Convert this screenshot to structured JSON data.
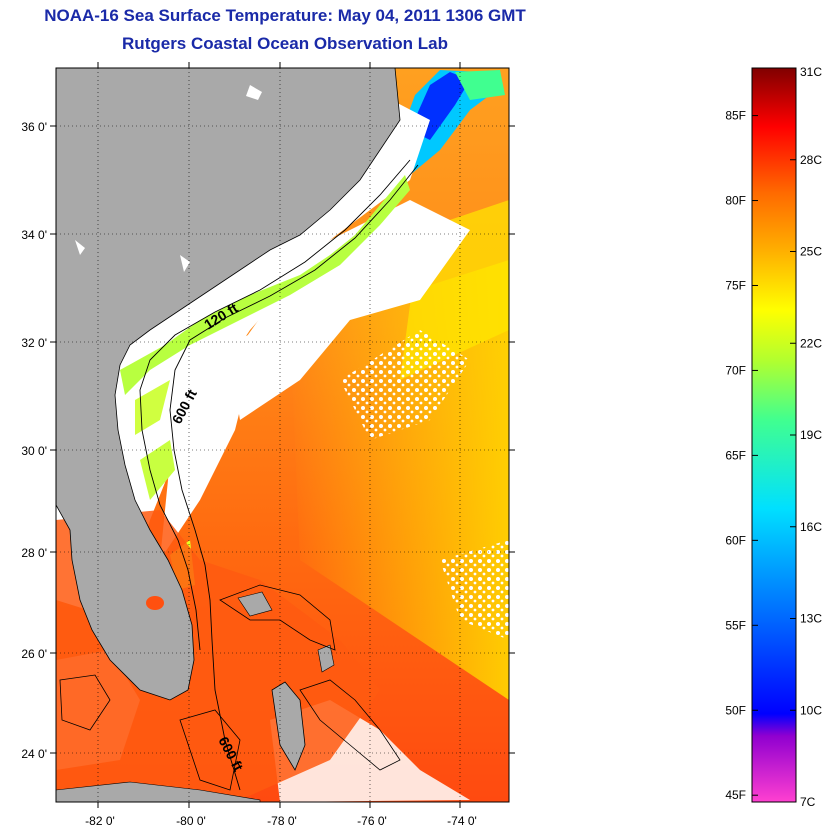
{
  "header": {
    "title": "NOAA-16 Sea Surface Temperature:  May 04, 2011 1306 GMT",
    "subtitle": "Rutgers Coastal Ocean Observation Lab"
  },
  "map": {
    "lat_labels": [
      "36 0'",
      "34 0'",
      "32 0'",
      "30 0'",
      "28 0'",
      "26 0'",
      "24 0'"
    ],
    "lon_labels": [
      "-82 0'",
      "-80 0'",
      "-78 0'",
      "-76 0'",
      "-74 0'"
    ],
    "contour_labels": [
      "120 ft",
      "600 ft",
      "600 ft"
    ],
    "land_color": "#a9a9a9",
    "no_data_color": "#ffffff"
  },
  "colorbar": {
    "fahrenheit_labels": [
      "85F",
      "80F",
      "75F",
      "70F",
      "65F",
      "60F",
      "55F",
      "50F",
      "45F"
    ],
    "celsius_labels": [
      "31C",
      "28C",
      "25C",
      "22C",
      "19C",
      "16C",
      "13C",
      "10C",
      "7C"
    ],
    "celsius_range": [
      7,
      31
    ],
    "fahrenheit_range": [
      45,
      88
    ],
    "colors": [
      "#ff40d0",
      "#9000d0",
      "#0000ff",
      "#0090ff",
      "#00e0ff",
      "#40ff90",
      "#b0ff30",
      "#ffff00",
      "#ffb000",
      "#ff6a00",
      "#ff0000",
      "#800000"
    ]
  }
}
